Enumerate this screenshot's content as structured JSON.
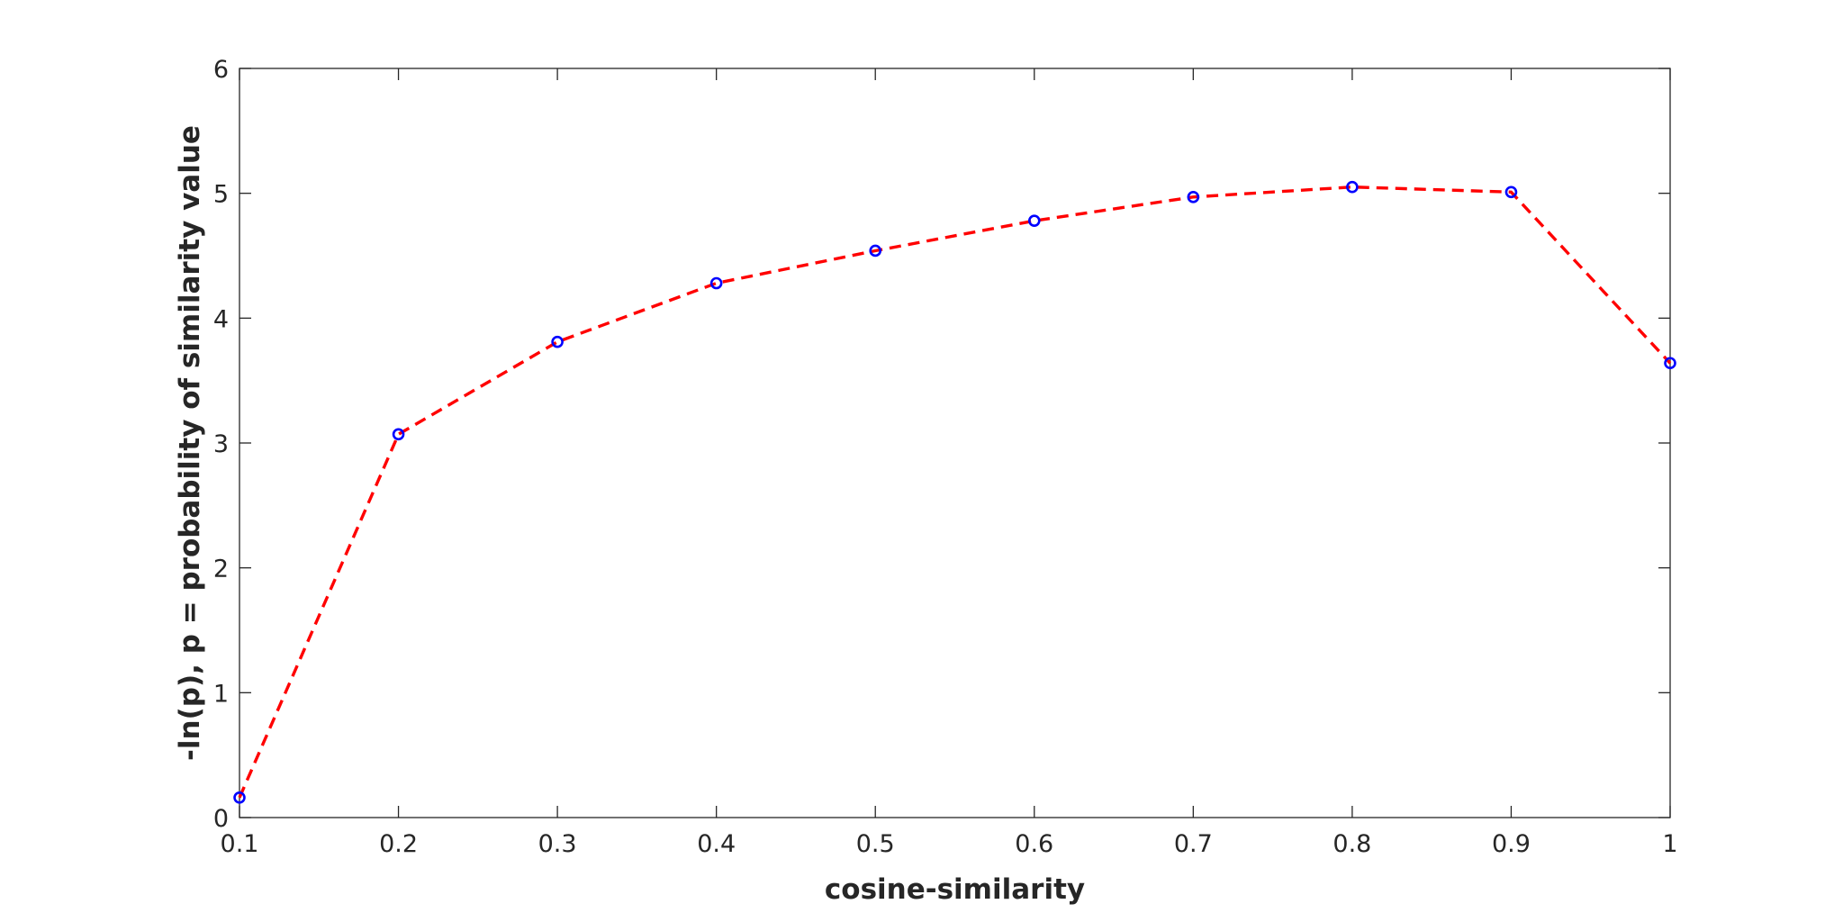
{
  "chart_data": {
    "type": "line",
    "title": "",
    "xlabel": "cosine-similarity",
    "ylabel": "-ln(p), p = probability of similarity value",
    "xlim": [
      0.1,
      1
    ],
    "ylim": [
      0,
      6
    ],
    "xticks": [
      "0.1",
      "0.2",
      "0.3",
      "0.4",
      "0.5",
      "0.6",
      "0.7",
      "0.8",
      "0.9",
      "1"
    ],
    "yticks": [
      "0",
      "1",
      "2",
      "3",
      "4",
      "5",
      "6"
    ],
    "grid": false,
    "legend": false,
    "series": [
      {
        "x": [
          0.1,
          0.2,
          0.3,
          0.4,
          0.5,
          0.6,
          0.7,
          0.8,
          0.9,
          1.0
        ],
        "y": [
          0.16,
          3.07,
          3.81,
          4.28,
          4.54,
          4.78,
          4.97,
          5.05,
          5.01,
          3.64
        ],
        "line_color": "#ff0000",
        "line_style": "dashed",
        "marker": "circle",
        "marker_color": "#0000ff"
      }
    ]
  }
}
